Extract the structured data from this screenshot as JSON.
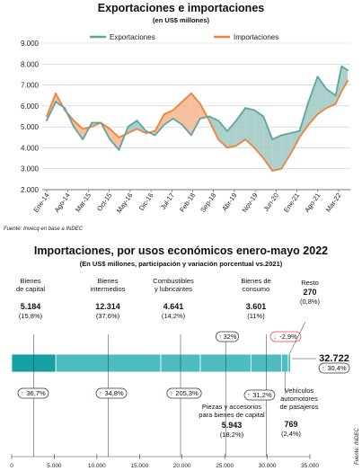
{
  "colors": {
    "exports": "#5aa6a0",
    "imports": "#f0803c",
    "fill_exports_above": "#9dc9c4",
    "fill_imports_above": "#f5b58e",
    "bar_teal": "#16a0a4",
    "bar_teal_light": "#4fbcbf",
    "up_green": "#1f8b6e",
    "down_red": "#e0473a"
  },
  "source_top": "Fuente: Invecq en base a INDEC",
  "source_bottom": "Fuente: INDEC",
  "chart_data": [
    {
      "type": "line",
      "title": "Exportaciones e importaciones",
      "subtitle": "(en US$ millones)",
      "legend_position": "top",
      "ylim": [
        2000,
        9000
      ],
      "yticks": [
        2000,
        3000,
        4000,
        5000,
        6000,
        7000,
        8000,
        9000
      ],
      "ytick_labels": [
        "2.000",
        "3.000",
        "4.000",
        "5.000",
        "6.000",
        "7.000",
        "8.000",
        "9.000"
      ],
      "xtick_labels": [
        "Ene-14",
        "Ago-14",
        "Mar-15",
        "Oct-15",
        "May-16",
        "Dic-16",
        "Jul-17",
        "Feb-18",
        "Sep-18",
        "Abr-19",
        "Nov-19",
        "Jun-20",
        "Ene-21",
        "Ago-21",
        "Mar-22"
      ],
      "grid": true,
      "series": [
        {
          "name": "Exportaciones",
          "x": [
            "Ene-14",
            "Abr-14",
            "Jul-14",
            "Oct-14",
            "Ene-15",
            "Abr-15",
            "Jul-15",
            "Oct-15",
            "Ene-16",
            "Abr-16",
            "Jul-16",
            "Oct-16",
            "Ene-17",
            "Abr-17",
            "Jul-17",
            "Oct-17",
            "Ene-18",
            "Abr-18",
            "Jul-18",
            "Oct-18",
            "Ene-19",
            "Abr-19",
            "Jul-19",
            "Oct-19",
            "Ene-20",
            "Abr-20",
            "Jul-20",
            "Oct-20",
            "Ene-21",
            "Abr-21",
            "Jul-21",
            "Oct-21",
            "Ene-22",
            "Mar-22",
            "May-22"
          ],
          "values": [
            5300,
            6200,
            5900,
            5000,
            4400,
            5200,
            5200,
            4400,
            3900,
            5000,
            5300,
            4800,
            4600,
            5100,
            5400,
            5100,
            4600,
            5400,
            5500,
            5300,
            4800,
            5300,
            5900,
            5800,
            5500,
            4400,
            4600,
            4700,
            4800,
            6200,
            7400,
            6800,
            6500,
            7900,
            7700
          ]
        },
        {
          "name": "Importaciones",
          "x": [
            "Ene-14",
            "Abr-14",
            "Jul-14",
            "Oct-14",
            "Ene-15",
            "Abr-15",
            "Jul-15",
            "Oct-15",
            "Ene-16",
            "Abr-16",
            "Jul-16",
            "Oct-16",
            "Ene-17",
            "Abr-17",
            "Jul-17",
            "Oct-17",
            "Ene-18",
            "Abr-18",
            "Jul-18",
            "Oct-18",
            "Ene-19",
            "Abr-19",
            "Jul-19",
            "Oct-19",
            "Ene-20",
            "Abr-20",
            "Jul-20",
            "Oct-20",
            "Ene-21",
            "Abr-21",
            "Jul-21",
            "Oct-21",
            "Ene-22",
            "Mar-22",
            "May-22"
          ],
          "values": [
            5500,
            6600,
            5800,
            5300,
            4900,
            5000,
            5200,
            4900,
            4500,
            4700,
            4900,
            4700,
            4800,
            5600,
            5800,
            6200,
            6600,
            6100,
            5300,
            4400,
            4000,
            4100,
            4400,
            4000,
            3500,
            2900,
            3000,
            3700,
            4500,
            5100,
            5600,
            5900,
            6100,
            6700,
            7200
          ]
        }
      ]
    },
    {
      "type": "bar",
      "title": "Importaciones, por usos económicos enero-mayo 2022",
      "subtitle": "(En US$ millones, participación y variación porcentual vs.2021)",
      "total_label": "32.722",
      "xlim": [
        0,
        35000
      ],
      "xticks": [
        0,
        5000,
        10000,
        15000,
        20000,
        25000,
        30000,
        35000
      ],
      "xtick_labels": [
        "0",
        "5.000",
        "10.000",
        "15.000",
        "20.000",
        "25.000",
        "30.000",
        "35.000"
      ],
      "segments": [
        {
          "label": "Bienes de capital",
          "value": 5184,
          "value_label": "5.184",
          "share": "(15,8%)",
          "change": "36,7%",
          "direction": "up"
        },
        {
          "label": "Bienes intermedios",
          "value": 12314,
          "value_label": "12.314",
          "share": "(37,6%)",
          "change": "34,8%",
          "direction": "up"
        },
        {
          "label": "Combustibles y lubricantes",
          "value": 4641,
          "value_label": "4.641",
          "share": "(14,2%)",
          "change": "205,3%",
          "direction": "up"
        },
        {
          "label": "Piezas y accesorios para bienes de capital",
          "value": 5943,
          "value_label": "5.943",
          "share": "(18,2%)",
          "change": "32%",
          "direction": "up"
        },
        {
          "label": "Bienes de consumo",
          "value": 3601,
          "value_label": "3.601",
          "share": "(11%)",
          "change": "31,2%",
          "direction": "up"
        },
        {
          "label": "Vehículos automotores de pasajeros",
          "value": 769,
          "value_label": "769",
          "share": "(2,4%)",
          "change": "-2,9%",
          "direction": "down"
        },
        {
          "label": "Resto",
          "value": 270,
          "value_label": "270",
          "share": "(0,8%)",
          "change": "30,4%",
          "direction": "up"
        }
      ]
    }
  ]
}
